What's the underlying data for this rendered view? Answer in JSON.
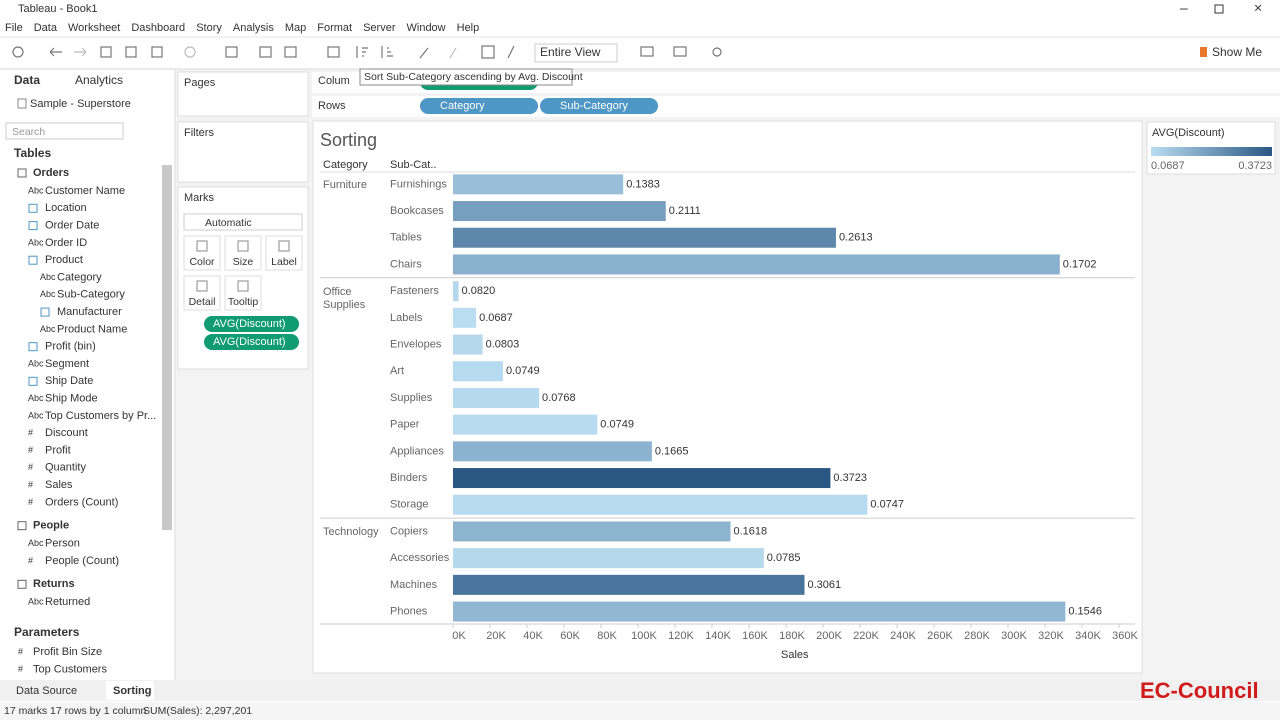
{
  "window": {
    "title": "Tableau - Book1"
  },
  "menu": [
    "File",
    "Data",
    "Worksheet",
    "Dashboard",
    "Story",
    "Analysis",
    "Map",
    "Format",
    "Server",
    "Window",
    "Help"
  ],
  "toolbar": {
    "view": "Entire View",
    "show_me": "Show Me",
    "tooltip": "Sort Sub-Category ascending by Avg. Discount"
  },
  "data_pane": {
    "tabs": [
      "Data",
      "Analytics"
    ],
    "source": "Sample - Superstore",
    "search": "Search",
    "tables_heading": "Tables",
    "tables": [
      {
        "name": "Orders",
        "fields": [
          {
            "name": "Customer Name",
            "icon": "Abc"
          },
          {
            "name": "Location",
            "icon": null
          },
          {
            "name": "Order Date",
            "icon": null
          },
          {
            "name": "Order ID",
            "icon": "Abc"
          },
          {
            "name": "Product",
            "icon": null,
            "children": [
              {
                "name": "Category",
                "icon": "Abc"
              },
              {
                "name": "Sub-Category",
                "icon": "Abc"
              },
              {
                "name": "Manufacturer",
                "icon": null
              },
              {
                "name": "Product Name",
                "icon": "Abc"
              }
            ]
          },
          {
            "name": "Profit (bin)",
            "icon": null
          },
          {
            "name": "Segment",
            "icon": "Abc"
          },
          {
            "name": "Ship Date",
            "icon": null
          },
          {
            "name": "Ship Mode",
            "icon": "Abc"
          },
          {
            "name": "Top Customers by Pr...",
            "icon": "Abc"
          },
          {
            "name": "Discount",
            "icon": "#"
          },
          {
            "name": "Profit",
            "icon": "#"
          },
          {
            "name": "Quantity",
            "icon": "#"
          },
          {
            "name": "Sales",
            "icon": "#"
          },
          {
            "name": "Orders (Count)",
            "icon": "#"
          }
        ]
      },
      {
        "name": "People",
        "fields": [
          {
            "name": "Person",
            "icon": "Abc"
          },
          {
            "name": "People (Count)",
            "icon": "#"
          }
        ]
      },
      {
        "name": "Returns",
        "fields": [
          {
            "name": "Returned",
            "icon": "Abc"
          }
        ]
      }
    ],
    "parameters_heading": "Parameters",
    "parameters": [
      {
        "name": "Profit Bin Size",
        "icon": "#"
      },
      {
        "name": "Top Customers",
        "icon": "#"
      }
    ]
  },
  "cards": {
    "pages": "Pages",
    "filters": "Filters",
    "marks": "Marks",
    "mark_type": "Automatic",
    "buttons": [
      "Color",
      "Size",
      "Label",
      "Detail",
      "Tooltip"
    ],
    "pills": [
      "AVG(Discount)",
      "AVG(Discount)"
    ]
  },
  "shelves": {
    "columns": "Colum",
    "rows": "Rows",
    "row_pills": [
      "Category",
      "Sub-Category"
    ]
  },
  "chart_data": {
    "type": "bar",
    "orientation": "horizontal",
    "title": "Sorting",
    "row_headers": [
      "Category",
      "Sub-Cat.."
    ],
    "x_label": "Sales",
    "groups": [
      {
        "name": "Furniture",
        "categories": [
          "Furnishings",
          "Bookcases",
          "Tables",
          "Chairs"
        ],
        "values": [
          92000,
          115000,
          207000,
          328000
        ],
        "discount": [
          0.1383,
          0.2111,
          0.2613,
          0.1702
        ],
        "discount_labels": [
          "0.1383",
          "0.2111",
          "0.2613",
          "0.1702"
        ]
      },
      {
        "name": "Office Supplies",
        "categories": [
          "Fasteners",
          "Labels",
          "Envelopes",
          "Art",
          "Supplies",
          "Paper",
          "Appliances",
          "Binders",
          "Storage"
        ],
        "values": [
          3000,
          12500,
          16000,
          27000,
          46500,
          78000,
          107500,
          204000,
          224000
        ],
        "discount": [
          0.082,
          0.0687,
          0.0803,
          0.0749,
          0.0768,
          0.0749,
          0.1665,
          0.3723,
          0.0747
        ],
        "discount_labels": [
          "0.0820",
          "0.0687",
          "0.0803",
          "0.0749",
          "0.0768",
          "0.0749",
          "0.1665",
          "0.3723",
          "0.0747"
        ]
      },
      {
        "name": "Technology",
        "categories": [
          "Copiers",
          "Accessories",
          "Machines",
          "Phones"
        ],
        "values": [
          150000,
          168000,
          190000,
          331000
        ],
        "discount": [
          0.1618,
          0.0785,
          0.3061,
          0.1546
        ],
        "discount_labels": [
          "0.1618",
          "0.0785",
          "0.3061",
          "0.1546"
        ]
      }
    ],
    "xlim": [
      0,
      360000
    ],
    "xticks": [
      {
        "value": 0,
        "label": "0K"
      },
      {
        "value": 20000,
        "label": "20K"
      },
      {
        "value": 40000,
        "label": "40K"
      },
      {
        "value": 60000,
        "label": "60K"
      },
      {
        "value": 80000,
        "label": "80K"
      },
      {
        "value": 100000,
        "label": "100K"
      },
      {
        "value": 120000,
        "label": "120K"
      },
      {
        "value": 140000,
        "label": "140K"
      },
      {
        "value": 160000,
        "label": "160K"
      },
      {
        "value": 180000,
        "label": "180K"
      },
      {
        "value": 200000,
        "label": "200K"
      },
      {
        "value": 220000,
        "label": "220K"
      },
      {
        "value": 240000,
        "label": "240K"
      },
      {
        "value": 260000,
        "label": "260K"
      },
      {
        "value": 280000,
        "label": "280K"
      },
      {
        "value": 300000,
        "label": "300K"
      },
      {
        "value": 320000,
        "label": "320K"
      },
      {
        "value": 340000,
        "label": "340K"
      },
      {
        "value": 360000,
        "label": "360K"
      }
    ],
    "legend": {
      "title": "AVG(Discount)",
      "min": 0.0687,
      "max": 0.3723,
      "colors": [
        "#b9ddf1",
        "#2a5783"
      ]
    }
  },
  "tabs": {
    "data_source": "Data Source",
    "sheet": "Sorting"
  },
  "status": [
    "17 marks",
    "17 rows by 1 column",
    "SUM(Sales): 2,297,201"
  ],
  "logo": "EC-Council"
}
